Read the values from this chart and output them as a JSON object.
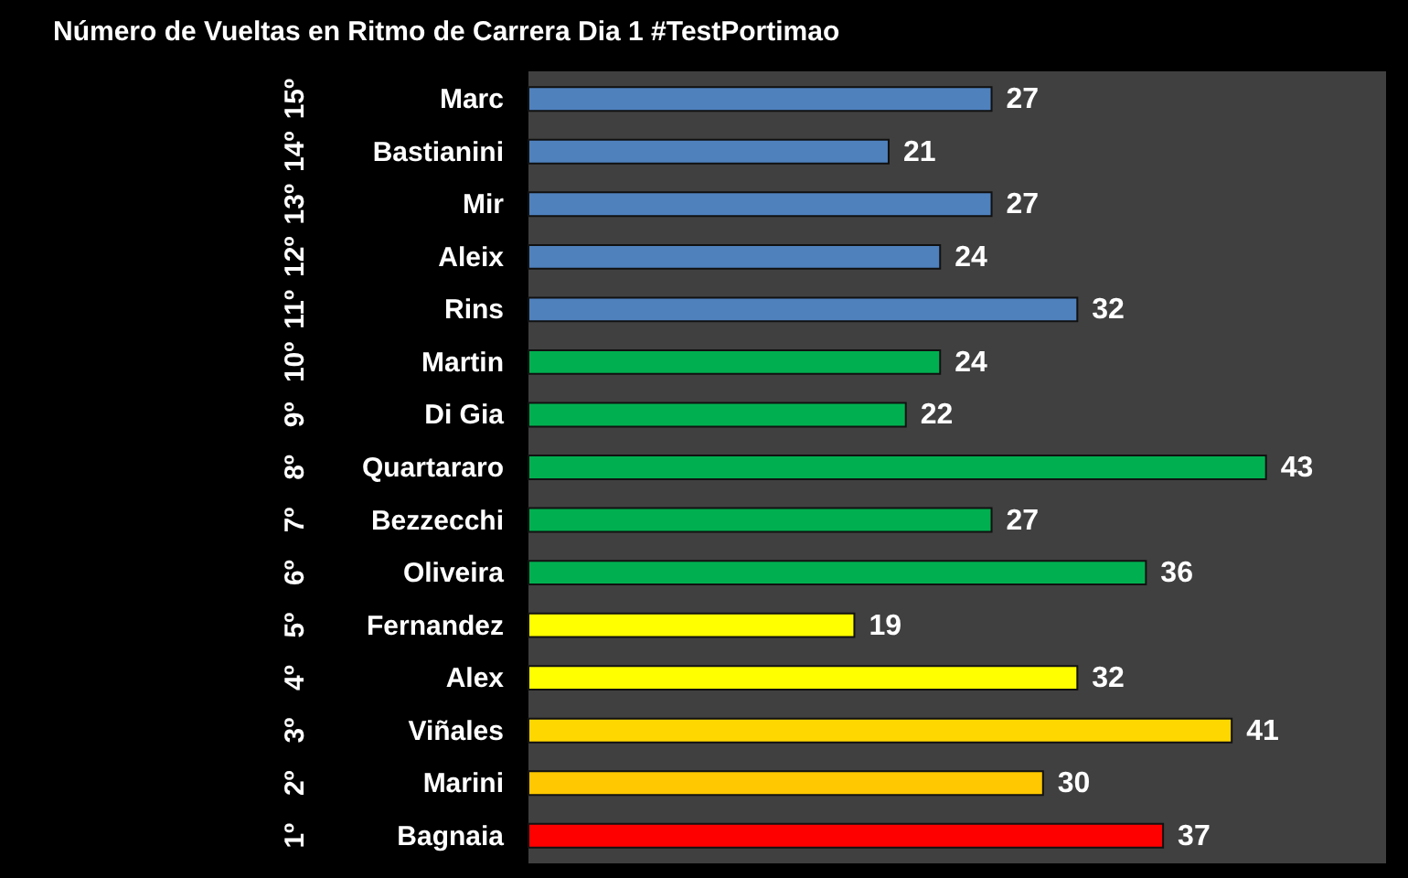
{
  "chart_data": {
    "type": "bar",
    "orientation": "horizontal",
    "title": "Número de Vueltas en Ritmo de Carrera Dia 1 #TestPortimao",
    "categories": [
      "Marc",
      "Bastianini",
      "Mir",
      "Aleix",
      "Rins",
      "Martin",
      "Di Gia",
      "Quartararo",
      "Bezzecchi",
      "Oliveira",
      "Fernandez",
      "Alex",
      "Viñales",
      "Marini",
      "Bagnaia"
    ],
    "values": [
      27,
      21,
      27,
      24,
      32,
      24,
      22,
      43,
      27,
      36,
      19,
      32,
      41,
      30,
      37
    ],
    "colors": [
      "#4f81bd",
      "#4f81bd",
      "#4f81bd",
      "#4f81bd",
      "#4f81bd",
      "#00b050",
      "#00b050",
      "#00b050",
      "#00b050",
      "#00b050",
      "#ffff00",
      "#ffff00",
      "#ffd700",
      "#ffc800",
      "#ff0000"
    ],
    "xlim": [
      0,
      50
    ],
    "tick_labels": "y",
    "data_labels": true,
    "annotations": [
      "15º",
      "14º",
      "13º",
      "12º",
      "11º",
      "10º",
      "9º",
      "8º",
      "7º",
      "6º",
      "5º",
      "4º",
      "3º",
      "2º",
      "1º"
    ]
  }
}
